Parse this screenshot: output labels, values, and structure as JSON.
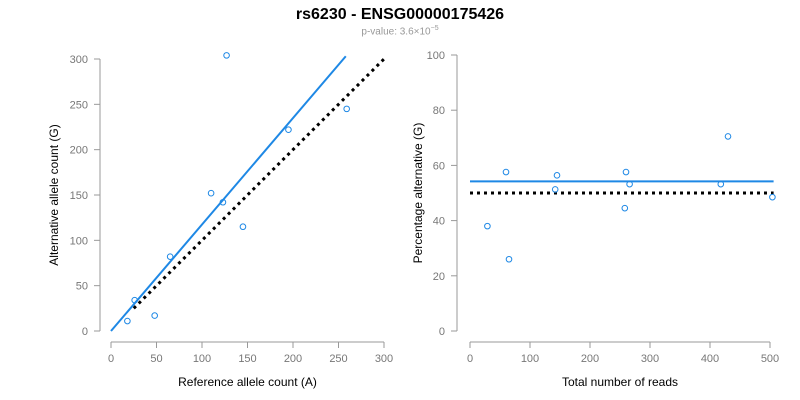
{
  "header": {
    "title": "rs6230 - ENSG00000175426",
    "pvalue_label": "p-value:",
    "pvalue_mantissa": "3.6",
    "pvalue_times": "×10",
    "pvalue_exponent": "−5"
  },
  "colors": {
    "accent": "#1E88E5",
    "axis": "#999999",
    "reference_line": "#000000"
  },
  "chart_data": [
    {
      "type": "scatter",
      "xlabel": "Reference allele count (A)",
      "ylabel": "Alternative allele count (G)",
      "xlim": [
        0,
        300
      ],
      "ylim": [
        0,
        300
      ],
      "xticks": [
        0,
        50,
        100,
        150,
        200,
        250,
        300
      ],
      "yticks": [
        0,
        50,
        100,
        150,
        200,
        250,
        300
      ],
      "grid": false,
      "points": [
        {
          "x": 18,
          "y": 11
        },
        {
          "x": 26,
          "y": 34
        },
        {
          "x": 48,
          "y": 17
        },
        {
          "x": 65,
          "y": 82
        },
        {
          "x": 110,
          "y": 152
        },
        {
          "x": 123,
          "y": 142
        },
        {
          "x": 127,
          "y": 304
        },
        {
          "x": 145,
          "y": 115
        },
        {
          "x": 195,
          "y": 222
        },
        {
          "x": 259,
          "y": 245
        }
      ],
      "fit_line": {
        "x": [
          0,
          258
        ],
        "y": [
          0,
          303
        ]
      },
      "reference_line": {
        "x": [
          25,
          302
        ],
        "y": [
          25,
          302
        ]
      }
    },
    {
      "type": "scatter",
      "xlabel": "Total number of reads",
      "ylabel": "Percentage alternative (G)",
      "xlim": [
        0,
        500
      ],
      "ylim": [
        0,
        100
      ],
      "xticks": [
        0,
        100,
        200,
        300,
        400,
        500
      ],
      "yticks": [
        0,
        20,
        40,
        60,
        80,
        100
      ],
      "grid": false,
      "points": [
        {
          "x": 29,
          "y": 38
        },
        {
          "x": 60,
          "y": 57.6
        },
        {
          "x": 65,
          "y": 26
        },
        {
          "x": 142,
          "y": 51.3
        },
        {
          "x": 145,
          "y": 56.4
        },
        {
          "x": 258,
          "y": 44.5
        },
        {
          "x": 260,
          "y": 57.6
        },
        {
          "x": 266,
          "y": 53.2
        },
        {
          "x": 418,
          "y": 53.2
        },
        {
          "x": 430,
          "y": 70.5
        },
        {
          "x": 504,
          "y": 48.5
        }
      ],
      "fit_line": {
        "x": [
          0,
          506
        ],
        "y": [
          54.2,
          54.2
        ]
      },
      "reference_line": {
        "x": [
          0,
          506
        ],
        "y": [
          50,
          50
        ]
      }
    }
  ]
}
